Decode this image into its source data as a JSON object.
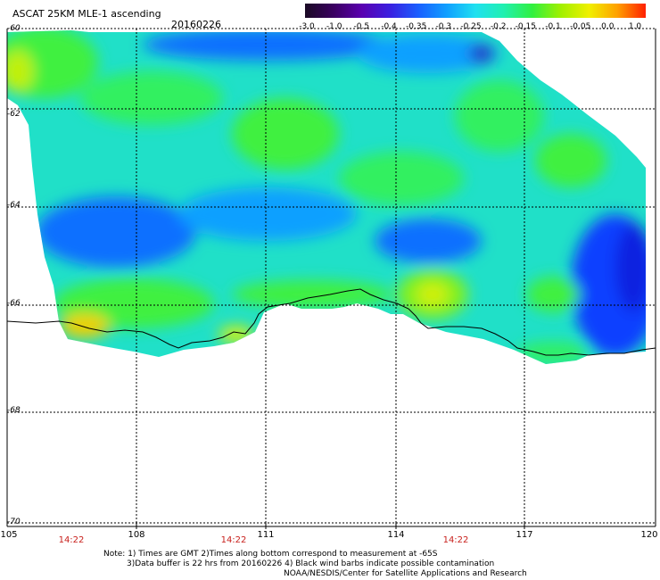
{
  "header": {
    "title": "ASCAT 25KM MLE-1 ascending",
    "date": "20160226"
  },
  "colorbar": {
    "labels": [
      "-3.0",
      "-1.0",
      "-0.5",
      "-0.4",
      "-0.35",
      "-0.3",
      "-0.25",
      "-0.2",
      "-0.15",
      "-0.1",
      "-0.05",
      "0.0",
      "1.0"
    ],
    "colors": [
      "#1a0a24",
      "#3a0060",
      "#5a00b0",
      "#3a20e0",
      "#1a60ff",
      "#10a0ff",
      "#20e0f0",
      "#20f0b0",
      "#30f040",
      "#a0f000",
      "#f0f000",
      "#ffa000",
      "#ff2000"
    ]
  },
  "map": {
    "lat_labels": [
      "-60",
      "-62",
      "-64",
      "-66",
      "-68",
      "-70"
    ],
    "lon_labels": [
      "105",
      "108",
      "111",
      "114",
      "117",
      "120"
    ],
    "time_labels": [
      "14:22",
      "14:22",
      "14:22"
    ]
  },
  "notes": {
    "line1": "Note: 1) Times are GMT 2)Times along bottom correspond to measurement at -65S",
    "line2": "3)Data buffer is 22 hrs from 20160226 4) Black wind barbs indicate possible contamination",
    "line3": "NOAA/NESDIS/Center for Satellite Applications and Research"
  }
}
